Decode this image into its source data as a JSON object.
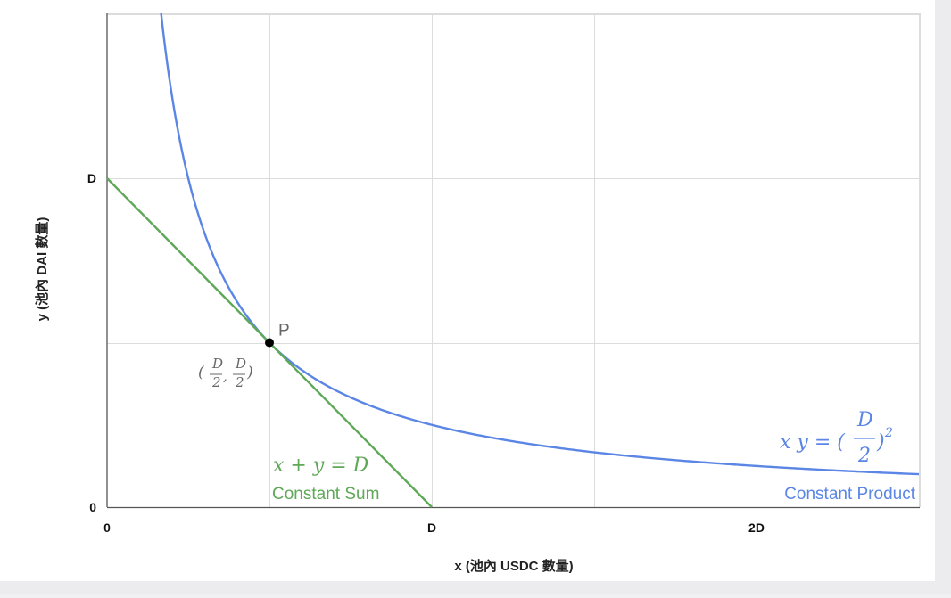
{
  "chart_data": {
    "type": "line",
    "xlabel": "x (池內 USDC 數量)",
    "ylabel": "y (池內 DAI  數量)",
    "x_ticks": [
      "0",
      "D",
      "2D"
    ],
    "y_ticks": [
      "0",
      "D"
    ],
    "xlim": [
      0,
      2.5
    ],
    "ylim": [
      0,
      1.5
    ],
    "grid": true,
    "colors": {
      "product": "#5b86e5",
      "sum": "#5ea858",
      "axis": "#555555",
      "grid": "#dcdcdc"
    },
    "series": [
      {
        "name": "Constant Product",
        "equation_main": "x  y = (",
        "equation_frac_num": "D",
        "equation_frac_den": "2",
        "equation_tail": ")",
        "equation_exp": "2",
        "form": "x*y=(D/2)^2",
        "k": 0.25
      },
      {
        "name": "Constant Sum",
        "equation": "x + y = D",
        "form": "x+y=D",
        "x": [
          0,
          1
        ],
        "y": [
          1,
          0
        ]
      }
    ],
    "point": {
      "name": "P",
      "x": 0.5,
      "y": 0.5,
      "coord_open": "(",
      "coord_num": "D",
      "coord_den": "2",
      "coord_sep": ",",
      "coord_close": ")"
    }
  }
}
